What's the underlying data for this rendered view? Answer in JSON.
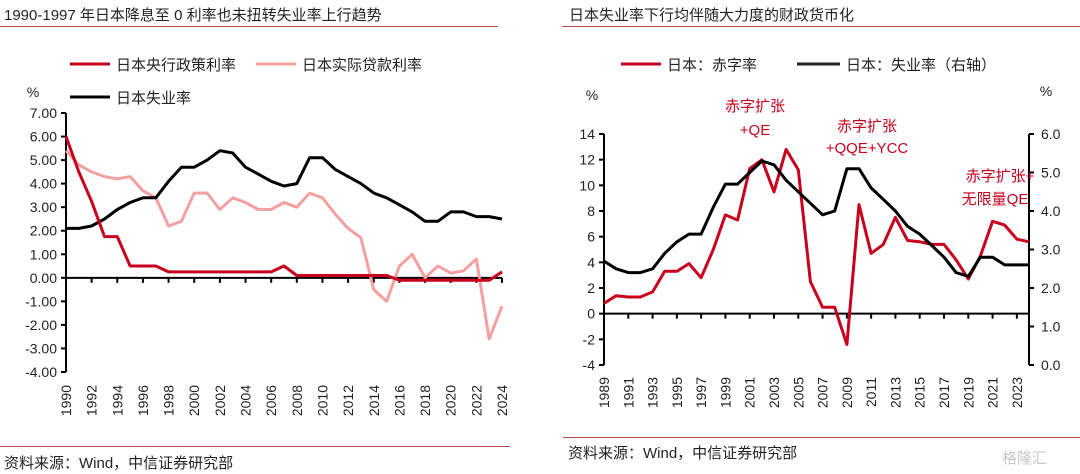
{
  "panels": [
    {
      "title": "1990-1997 年日本降息至 0 利率也未扭转失业率上行趋势",
      "source": "资料来源：Wind，中信证券研究部"
    },
    {
      "title": "日本失业率下行均伴随大力度的财政货币化",
      "source": "资料来源：Wind，中信证券研究部"
    }
  ],
  "watermark": "格隆汇",
  "chart_data": [
    {
      "type": "line",
      "title": "1990-1997 年日本降息至 0 利率也未扭转失业率上行趋势",
      "ylabel": "%",
      "ylim": [
        -4,
        7
      ],
      "yticks": [
        "7.00",
        "6.00",
        "5.00",
        "4.00",
        "3.00",
        "2.00",
        "1.00",
        "0.00",
        "-1.00",
        "-2.00",
        "-3.00",
        "-4.00"
      ],
      "xlim": [
        1990,
        2024
      ],
      "xticks": [
        "1990",
        "1992",
        "1994",
        "1996",
        "1998",
        "2000",
        "2002",
        "2004",
        "2006",
        "2008",
        "2010",
        "2012",
        "2014",
        "2016",
        "2018",
        "2020",
        "2022",
        "2024"
      ],
      "legend": [
        "日本央行政策利率",
        "日本实际贷款利率",
        "日本失业率"
      ],
      "legend_position": "top",
      "x": [
        1990,
        1991,
        1992,
        1993,
        1994,
        1995,
        1996,
        1997,
        1998,
        1999,
        2000,
        2001,
        2002,
        2003,
        2004,
        2005,
        2006,
        2007,
        2008,
        2009,
        2010,
        2011,
        2012,
        2013,
        2014,
        2015,
        2016,
        2017,
        2018,
        2019,
        2020,
        2021,
        2022,
        2023,
        2024
      ],
      "series": [
        {
          "name": "日本央行政策利率",
          "color": "#c8001e",
          "values": [
            6.0,
            4.5,
            3.25,
            1.75,
            1.75,
            0.5,
            0.5,
            0.5,
            0.25,
            0.25,
            0.25,
            0.25,
            0.25,
            0.25,
            0.25,
            0.25,
            0.25,
            0.5,
            0.1,
            0.1,
            0.1,
            0.1,
            0.1,
            0.1,
            0.1,
            0.1,
            -0.1,
            -0.1,
            -0.1,
            -0.1,
            -0.1,
            -0.1,
            -0.1,
            -0.1,
            0.25
          ]
        },
        {
          "name": "日本实际贷款利率",
          "color": "#f4a0a0",
          "values": [
            5.4,
            4.8,
            4.5,
            4.3,
            4.2,
            4.3,
            3.7,
            3.4,
            2.2,
            2.4,
            3.6,
            3.6,
            2.9,
            3.4,
            3.2,
            2.9,
            2.9,
            3.2,
            3.0,
            3.6,
            3.4,
            2.7,
            2.1,
            1.7,
            -0.5,
            -1.0,
            0.5,
            1.0,
            0.0,
            0.5,
            0.2,
            0.3,
            0.8,
            -2.6,
            -1.2
          ]
        },
        {
          "name": "日本失业率",
          "color": "#000000",
          "values": [
            2.1,
            2.1,
            2.2,
            2.5,
            2.9,
            3.2,
            3.4,
            3.4,
            4.1,
            4.7,
            4.7,
            5.0,
            5.4,
            5.3,
            4.7,
            4.4,
            4.1,
            3.9,
            4.0,
            5.1,
            5.1,
            4.6,
            4.3,
            4.0,
            3.6,
            3.4,
            3.1,
            2.8,
            2.4,
            2.4,
            2.8,
            2.8,
            2.6,
            2.6,
            2.5
          ]
        }
      ]
    },
    {
      "type": "line",
      "title": "日本失业率下行均伴随大力度的财政货币化",
      "ylabel_left": "%",
      "ylabel_right": "%",
      "ylim_left": [
        -4,
        14
      ],
      "ylim_right": [
        0,
        6
      ],
      "yticks_left": [
        "14",
        "12",
        "10",
        "8",
        "6",
        "4",
        "2",
        "0",
        "-2",
        "-4"
      ],
      "yticks_right": [
        "6.0",
        "5.0",
        "4.0",
        "3.0",
        "2.0",
        "1.0",
        "0.0"
      ],
      "xlim": [
        1989,
        2024
      ],
      "xticks": [
        "1989",
        "1991",
        "1993",
        "1995",
        "1997",
        "1999",
        "2001",
        "2003",
        "2005",
        "2007",
        "2009",
        "2011",
        "2013",
        "2015",
        "2017",
        "2019",
        "2021",
        "2023"
      ],
      "legend": [
        "日本：赤字率",
        "日本：失业率（右轴）"
      ],
      "legend_position": "top",
      "annotations": [
        {
          "line1": "赤字扩张",
          "line2": "+QE",
          "year": 2002
        },
        {
          "line1": "赤字扩张",
          "line2": "+QQE+YCC",
          "year": 2010
        },
        {
          "line1": "赤字扩张+",
          "line2": "无限量QE",
          "year": 2021
        }
      ],
      "x": [
        1989,
        1990,
        1991,
        1992,
        1993,
        1994,
        1995,
        1996,
        1997,
        1998,
        1999,
        2000,
        2001,
        2002,
        2003,
        2004,
        2005,
        2006,
        2007,
        2008,
        2009,
        2010,
        2011,
        2012,
        2013,
        2014,
        2015,
        2016,
        2017,
        2018,
        2019,
        2020,
        2021,
        2022,
        2023,
        2024
      ],
      "series": [
        {
          "name": "日本：赤字率",
          "axis": "left",
          "color": "#c8001e",
          "values": [
            0.8,
            1.4,
            1.3,
            1.3,
            1.7,
            3.3,
            3.3,
            3.9,
            2.8,
            5.0,
            7.7,
            7.3,
            11.3,
            12.0,
            9.5,
            12.8,
            11.2,
            2.5,
            0.5,
            0.5,
            -2.4,
            8.5,
            4.7,
            5.4,
            7.5,
            5.7,
            5.6,
            5.4,
            5.4,
            4.2,
            2.7,
            4.5,
            7.2,
            6.9,
            5.8,
            5.6
          ]
        },
        {
          "name": "日本：失业率（右轴）",
          "axis": "right",
          "color": "#000000",
          "values": [
            2.7,
            2.5,
            2.4,
            2.4,
            2.5,
            2.9,
            3.2,
            3.4,
            3.4,
            4.1,
            4.7,
            4.7,
            5.0,
            5.3,
            5.2,
            4.8,
            4.5,
            4.2,
            3.9,
            4.0,
            5.1,
            5.1,
            4.6,
            4.3,
            4.0,
            3.6,
            3.4,
            3.1,
            2.8,
            2.4,
            2.3,
            2.8,
            2.8,
            2.6,
            2.6,
            2.6
          ]
        }
      ]
    }
  ]
}
